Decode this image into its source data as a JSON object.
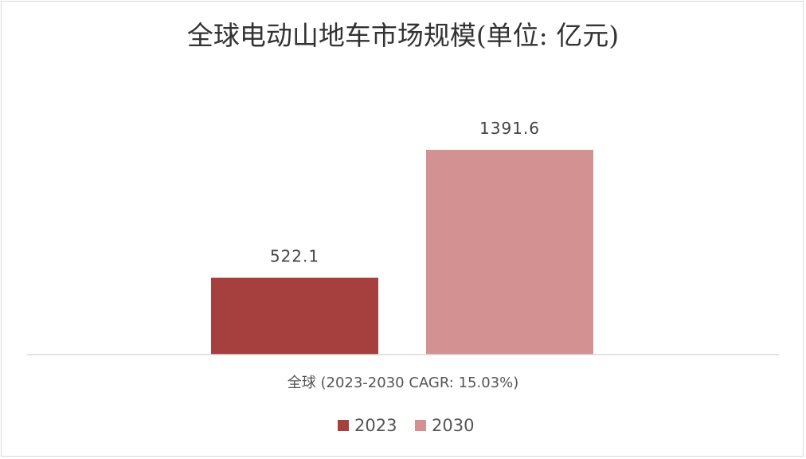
{
  "chart_data": {
    "type": "bar",
    "title": "全球电动山地车市场规模(单位: 亿元)",
    "categories": [
      "全球 (2023-2030 CAGR: 15.03%)"
    ],
    "series": [
      {
        "name": "2023",
        "values": [
          522.1
        ],
        "color": "#a6403e"
      },
      {
        "name": "2030",
        "values": [
          1391.6
        ],
        "color": "#d39291"
      }
    ],
    "ylim": [
      0,
      1391.6
    ],
    "grid": false,
    "legend_position": "bottom",
    "axis_color": "#d9d9d9"
  }
}
